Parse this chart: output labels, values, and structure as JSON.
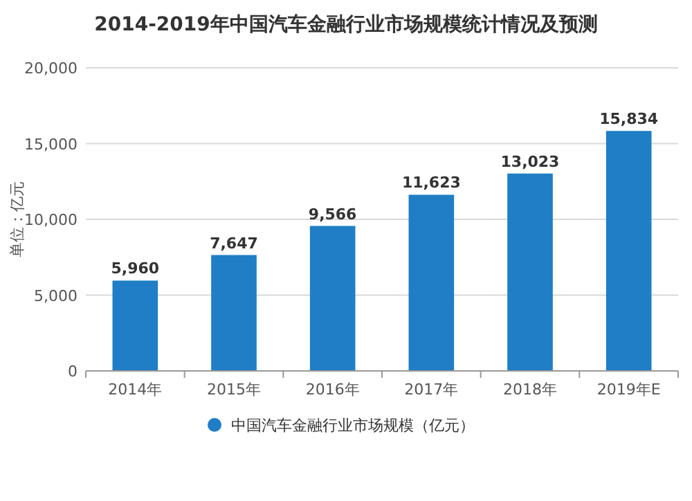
{
  "chart_data": {
    "type": "bar",
    "title": "2014-2019年中国汽车金融行业市场规模统计情况及预测",
    "ylabel": "单位：亿元",
    "categories": [
      "2014年",
      "2015年",
      "2016年",
      "2017年",
      "2018年",
      "2019年E"
    ],
    "series": [
      {
        "name": "中国汽车金融行业市场规模（亿元）",
        "color": "#1f7ec6",
        "values": [
          5960,
          7647,
          9566,
          11623,
          13023,
          15834
        ],
        "value_labels": [
          "5,960",
          "7,647",
          "9,566",
          "11,623",
          "13,023",
          "15,834"
        ]
      }
    ],
    "ylim": [
      0,
      20000
    ],
    "yticks": [
      {
        "value": 0,
        "label": "0"
      },
      {
        "value": 5000,
        "label": "5,000"
      },
      {
        "value": 10000,
        "label": "10,000"
      },
      {
        "value": 15000,
        "label": "15,000"
      },
      {
        "value": 20000,
        "label": "20,000"
      }
    ],
    "grid": "y",
    "legend": "bottom"
  }
}
